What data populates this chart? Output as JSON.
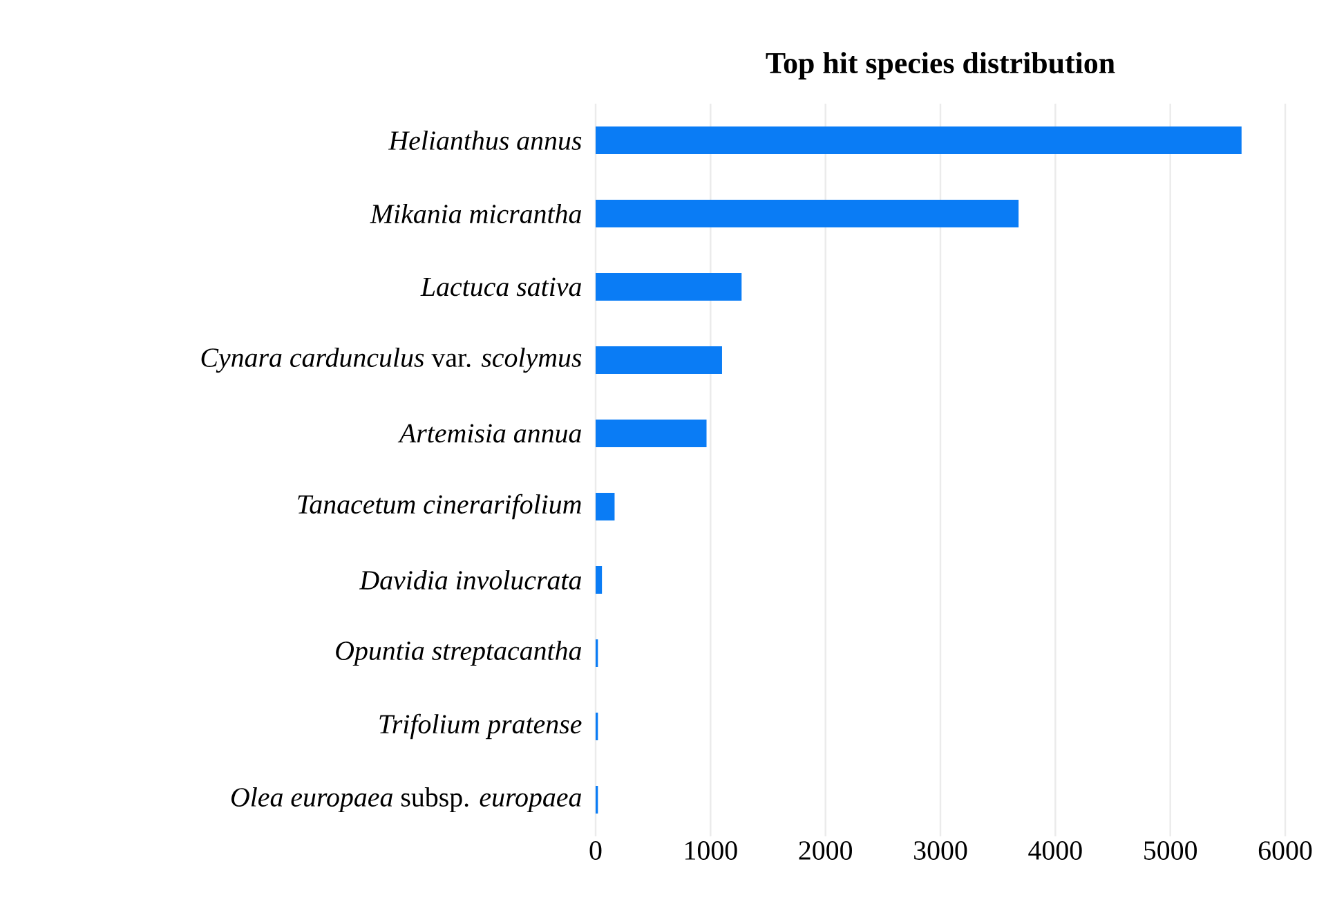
{
  "chart_data": {
    "type": "bar",
    "orientation": "horizontal",
    "title": "**Top hit species distribution**",
    "categories": [
      "*Helianthus annus*",
      "*Mikania micrantha*",
      "*Lactuca sativa*",
      "*Cynara cardunculus* var. *scolymus*",
      "*Artemisia annua*",
      "*Tanacetum cinerarifolium*",
      "*Davidia involucrata*",
      "*Opuntia streptacantha*",
      "*Trifolium pratense*",
      "*Olea europaea* subsp. *europaea*"
    ],
    "values": [
      5620,
      3680,
      1270,
      1100,
      965,
      165,
      55,
      20,
      20,
      20
    ],
    "color": "#0a7cf5",
    "xlim": [
      0,
      6000
    ],
    "xticks": [
      0,
      1000,
      2000,
      3000,
      4000,
      5000,
      6000
    ],
    "grid": "x"
  }
}
